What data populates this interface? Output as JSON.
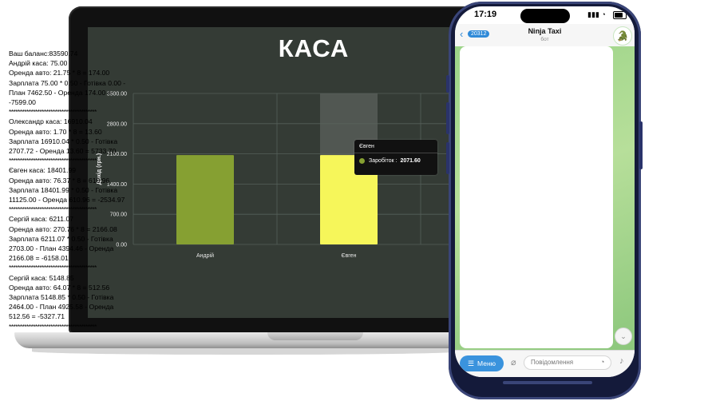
{
  "chart_data": {
    "type": "bar",
    "title": "КАСА",
    "categories": [
      "Андрій",
      "Євген"
    ],
    "series": [
      {
        "name": "Заробіток",
        "values": [
          2071.6,
          2071.6
        ]
      }
    ],
    "ylabel": "Дохід (грн.)",
    "yticks": [
      "0.00",
      "700.00",
      "1400.00",
      "2100.00",
      "2800.00",
      "3500.00"
    ],
    "ylim": [
      0,
      3500
    ],
    "bar_colors": [
      "#86a032",
      "#f6f65a"
    ],
    "highlight_color": "#5b615c",
    "grid": true,
    "tooltip": {
      "title": "Євген",
      "label": "Заробіток :",
      "value": "2071.60"
    }
  },
  "phone": {
    "time": "17:19",
    "signal": "▮▮▮ ◔",
    "back_badge": "20312",
    "chat_name": "Ninja Taxi",
    "chat_sub": "бот",
    "avatar_icon": "🐊",
    "menu_label": "Меню",
    "input_placeholder": "Повідомлення",
    "message_lines": [
      "Ваш баланс:83590.74",
      "Андрій                каса: 75.00",
      "Оренда авто: 21.75 * 8 = 174.00",
      "Зарплата 75.00 * 0.50 - Готівка 0.00 -",
      "План 7462.50 - Оренда 174.00 =",
      "-7599.00",
      "****************************************",
      "Олександр            каса: 16910.04",
      "Оренда авто: 1.70 * 8 = 13.60",
      "Зарплата 16910.04 * 0.50 - Готівка",
      "2707.72 - Оренда 13.60 = 5733.70",
      "****************************************",
      "Євген              каса: 18401.99",
      "Оренда авто: 76.37 * 8 = 610.96",
      "Зарплата 18401.99 * 0.50 - Готівка",
      "11125.00 - Оренда 610.96 = -2534.97",
      "****************************************",
      "Сергій                каса: 6211.07",
      "Оренда авто: 270.76 * 8 = 2166.08",
      "Зарплата 6211.07 * 0.50 - Готівка",
      "2703.00 - План 4394.46 - Оренда",
      "2166.08 = -6158.01",
      "****************************************",
      "Сергій          каса: 5148.85",
      "Оренда авто: 64.07 * 8 = 512.56",
      "Зарплата 5148.85 * 0.50 - Готівка",
      "2464.00 - План 4925.58 - Оренда",
      "512.56 = -5327.71",
      "****************************************"
    ]
  }
}
